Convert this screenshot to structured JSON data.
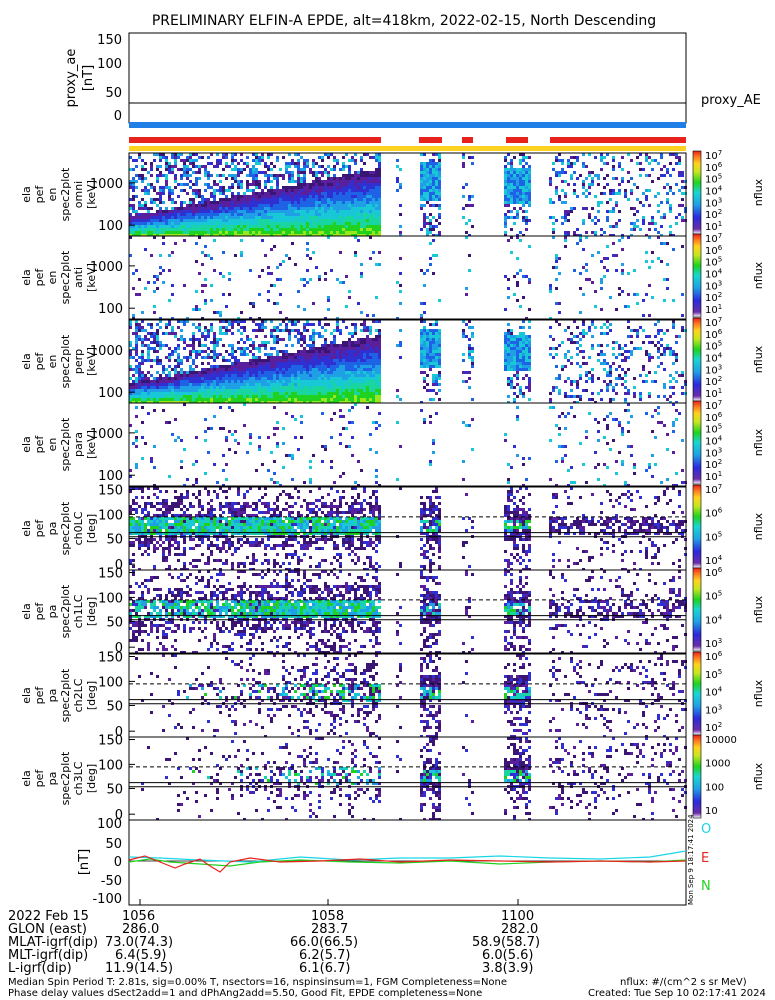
{
  "title": "PRELIMINARY ELFIN-A EPDE, alt=418km, 2022-02-15, North Descending",
  "ae_panel": {
    "ylabel": "proxy_ae\n[nT]",
    "ticks": [
      "150",
      "100",
      "50",
      "0"
    ],
    "legend": "proxy_AE"
  },
  "status_bars": {
    "colors": {
      "blue": "#1f7fe6",
      "red": "#e8231d",
      "yellow": "#ffd21f"
    }
  },
  "energy_panels": [
    {
      "ylabel": [
        "ela",
        "pef",
        "en",
        "spec2plot",
        "omni",
        "[keV]"
      ],
      "yticks": [
        "1000",
        "100"
      ]
    },
    {
      "ylabel": [
        "ela",
        "pef",
        "en",
        "spec2plot",
        "anti",
        "[keV]"
      ],
      "yticks": [
        "1000",
        "100"
      ]
    },
    {
      "ylabel": [
        "ela",
        "pef",
        "en",
        "spec2plot",
        "perp",
        "[keV]"
      ],
      "yticks": [
        "1000",
        "100"
      ]
    },
    {
      "ylabel": [
        "ela",
        "pef",
        "en",
        "spec2plot",
        "para",
        "[keV]"
      ],
      "yticks": [
        "1000",
        "100"
      ]
    }
  ],
  "pa_panels": [
    {
      "ylabel": [
        "ela",
        "pef",
        "pa",
        "spec2plot",
        "ch0LC",
        "[deg]"
      ],
      "yticks": [
        "150",
        "100",
        "50",
        "0"
      ]
    },
    {
      "ylabel": [
        "ela",
        "pef",
        "pa",
        "spec2plot",
        "ch1LC",
        "[deg]"
      ],
      "yticks": [
        "150",
        "100",
        "50",
        "0"
      ]
    },
    {
      "ylabel": [
        "ela",
        "pef",
        "pa",
        "spec2plot",
        "ch2LC",
        "[deg]"
      ],
      "yticks": [
        "150",
        "100",
        "50",
        "0"
      ]
    },
    {
      "ylabel": [
        "ela",
        "pef",
        "pa",
        "spec2plot",
        "ch3LC",
        "[deg]"
      ],
      "yticks": [
        "150",
        "100",
        "50",
        "0"
      ]
    }
  ],
  "colorbars": [
    {
      "labels": [
        "10^7",
        "10^6",
        "10^5",
        "10^4",
        "10^3",
        "10^2",
        "10^1"
      ],
      "unit": "nflux"
    },
    {
      "labels": [
        "10^7",
        "10^6",
        "10^5",
        "10^4",
        "10^3",
        "10^2",
        "10^1"
      ],
      "unit": "nflux"
    },
    {
      "labels": [
        "10^7",
        "10^6",
        "10^5",
        "10^4",
        "10^3",
        "10^2",
        "10^1"
      ],
      "unit": "nflux"
    },
    {
      "labels": [
        "10^7",
        "10^6",
        "10^5",
        "10^4",
        "10^3",
        "10^2",
        "10^1"
      ],
      "unit": "nflux"
    },
    {
      "labels": [
        "10^7",
        "10^6",
        "10^5",
        "10^4"
      ],
      "unit": "nflux"
    },
    {
      "labels": [
        "10^6",
        "10^5",
        "10^4",
        "10^3"
      ],
      "unit": "nflux"
    },
    {
      "labels": [
        "10^6",
        "10^5",
        "10^4",
        "10^3",
        "10^2"
      ],
      "unit": "nflux"
    },
    {
      "labels": [
        "10000",
        "1000",
        "100",
        "10"
      ],
      "unit": "nflux"
    }
  ],
  "mag_panel": {
    "ylabel": "[nT]",
    "yticks": [
      "100",
      "50",
      "0",
      "-50",
      "-100"
    ],
    "legend": [
      {
        "name": "O",
        "color": "#19d6e6"
      },
      {
        "name": "E",
        "color": "#e8231d"
      },
      {
        "name": "N",
        "color": "#1fd21f"
      }
    ],
    "side_text": "Mon Sep  9 18:17:41 2024"
  },
  "ephemeris": {
    "rows": [
      {
        "label": "2022 Feb 15",
        "values": [
          "1056",
          "1058",
          "1100"
        ]
      },
      {
        "label": "GLON (east)",
        "values": [
          "286.0",
          "283.7",
          "282.0"
        ]
      },
      {
        "label": "MLAT-igrf(dip)",
        "values": [
          "73.0(74.3)",
          "66.0(66.5)",
          "58.9(58.7)"
        ]
      },
      {
        "label": "MLT-igrf(dip)",
        "values": [
          "6.4(5.9)",
          "6.2(5.7)",
          "6.0(5.6)"
        ]
      },
      {
        "label": "L-igrf(dip)",
        "values": [
          "11.9(14.5)",
          "6.1(6.7)",
          "3.8(3.9)"
        ]
      }
    ]
  },
  "footer": {
    "line1": "Median Spin Period T: 2.81s, sig=0.00% T, nsectors=16, nspinsinsum=1, FGM Completeness=None",
    "line2": "Phase delay values dSect2add=1 and dPhAng2add=5.50, Good Fit, EPDE completeness=None",
    "units": "nflux: #/(cm^2 s sr MeV)",
    "created": "Created: Tue Sep 10 02:17:41 2024"
  },
  "chart_data": {
    "type": "heatmap",
    "title": "PRELIMINARY ELFIN-A EPDE, alt=418km, 2022-02-15, North Descending",
    "time_ticks": [
      "1056",
      "1058",
      "1100"
    ],
    "panels": [
      {
        "name": "proxy_ae",
        "type": "line",
        "ylim": [
          0,
          150
        ],
        "units": "nT",
        "note": "flat line near 20 nT"
      },
      {
        "name": "energy omni",
        "type": "heatmap",
        "ylim_keV": [
          63,
          7000
        ],
        "scale": "log",
        "color_range": [
          10.0,
          10000000.0
        ]
      },
      {
        "name": "energy anti",
        "type": "heatmap",
        "ylim_keV": [
          63,
          7000
        ],
        "scale": "log",
        "color_range": [
          10.0,
          10000000.0
        ]
      },
      {
        "name": "energy perp",
        "type": "heatmap",
        "ylim_keV": [
          63,
          7000
        ],
        "scale": "log",
        "color_range": [
          10.0,
          10000000.0
        ]
      },
      {
        "name": "energy para",
        "type": "heatmap",
        "ylim_keV": [
          63,
          7000
        ],
        "scale": "log",
        "color_range": [
          10.0,
          10000000.0
        ]
      },
      {
        "name": "pa ch0LC",
        "type": "heatmap",
        "ylim_deg": [
          0,
          180
        ],
        "color_range": [
          10000.0,
          10000000.0
        ]
      },
      {
        "name": "pa ch1LC",
        "type": "heatmap",
        "ylim_deg": [
          0,
          180
        ],
        "color_range": [
          1000.0,
          1000000.0
        ]
      },
      {
        "name": "pa ch2LC",
        "type": "heatmap",
        "ylim_deg": [
          0,
          180
        ],
        "color_range": [
          100.0,
          1000000.0
        ]
      },
      {
        "name": "pa ch3LC",
        "type": "heatmap",
        "ylim_deg": [
          0,
          180
        ],
        "color_range": [
          10,
          10000
        ]
      },
      {
        "name": "magnetic field",
        "type": "line",
        "ylim": [
          -100,
          100
        ],
        "units": "nT"
      }
    ]
  }
}
